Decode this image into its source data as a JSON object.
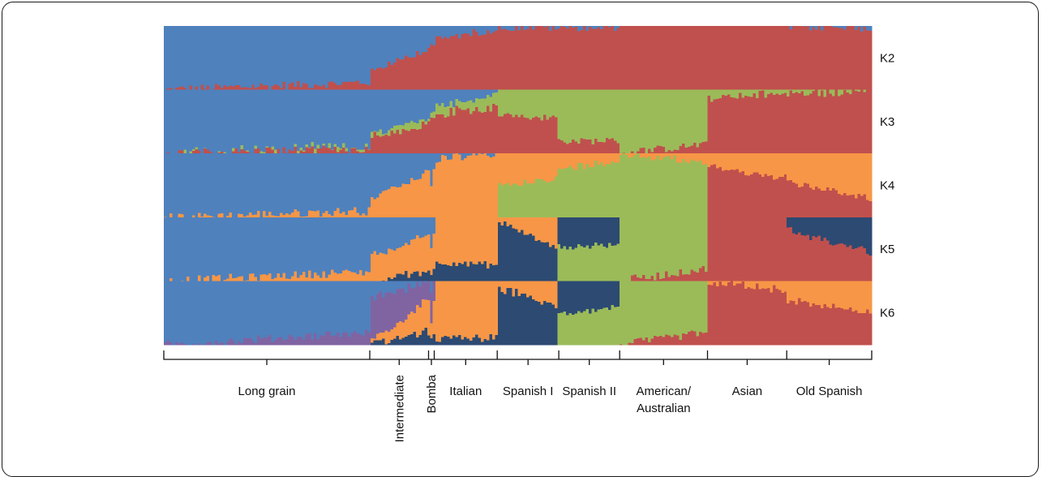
{
  "chart_data": {
    "type": "bar",
    "subtype": "stacked-100-percent admixture plot (STRUCTURE)",
    "rows": [
      "K2",
      "K3",
      "K4",
      "K5",
      "K6"
    ],
    "component_colors": [
      "#4f81bd",
      "#c0504d",
      "#9bbb59",
      "#f79646",
      "#2c4a72",
      "#8064a2"
    ],
    "component_color_names": [
      "blue",
      "red",
      "green",
      "orange",
      "navy",
      "purple"
    ],
    "groups": [
      {
        "label": "Long grain",
        "orientation": "horizontal",
        "proportion": 0.291
      },
      {
        "label": "Intermediate",
        "orientation": "vertical",
        "proportion": 0.083
      },
      {
        "label": "Bomba",
        "orientation": "vertical",
        "proportion": 0.008
      },
      {
        "label": "Italian",
        "orientation": "horizontal",
        "proportion": 0.089
      },
      {
        "label": "Spanish I",
        "orientation": "horizontal",
        "proportion": 0.087
      },
      {
        "label": "Spanish II",
        "orientation": "horizontal",
        "proportion": 0.086
      },
      {
        "label": "American/ Australian",
        "label_lines": [
          "American/",
          "Australian"
        ],
        "orientation": "horizontal",
        "proportion": 0.124
      },
      {
        "label": "Asian",
        "orientation": "horizontal",
        "proportion": 0.112
      },
      {
        "label": "Old Spanish",
        "orientation": "horizontal",
        "proportion": 0.12
      }
    ],
    "profiles": {
      "K2": [
        {
          "group": "Long grain",
          "start": {
            "blue": 1.0,
            "red": 0.0
          },
          "end": {
            "blue": 0.88,
            "red": 0.12
          }
        },
        {
          "group": "Intermediate",
          "start": {
            "blue": 0.72,
            "red": 0.28
          },
          "end": {
            "blue": 0.35,
            "red": 0.65
          }
        },
        {
          "group": "Bomba",
          "start": {
            "blue": 0.3,
            "red": 0.7
          },
          "end": {
            "blue": 0.28,
            "red": 0.72
          }
        },
        {
          "group": "Italian",
          "start": {
            "blue": 0.22,
            "red": 0.78
          },
          "end": {
            "blue": 0.05,
            "red": 0.95
          }
        },
        {
          "group": "Spanish I",
          "start": {
            "blue": 0.02,
            "red": 0.98
          },
          "end": {
            "blue": 0.02,
            "red": 0.98
          }
        },
        {
          "group": "Spanish II",
          "start": {
            "blue": 0.02,
            "red": 0.98
          },
          "end": {
            "blue": 0.02,
            "red": 0.98
          }
        },
        {
          "group": "American/ Australian",
          "start": {
            "blue": 0.0,
            "red": 1.0
          },
          "end": {
            "blue": 0.0,
            "red": 1.0
          }
        },
        {
          "group": "Asian",
          "start": {
            "blue": 0.0,
            "red": 1.0
          },
          "end": {
            "blue": 0.0,
            "red": 1.0
          }
        },
        {
          "group": "Old Spanish",
          "start": {
            "blue": 0.01,
            "red": 0.99
          },
          "end": {
            "blue": 0.03,
            "red": 0.97
          }
        }
      ],
      "K3": [
        {
          "group": "Long grain",
          "start": {
            "blue": 1.0,
            "red": 0.0,
            "green": 0.0
          },
          "end": {
            "blue": 0.9,
            "red": 0.08,
            "green": 0.02
          }
        },
        {
          "group": "Intermediate",
          "start": {
            "blue": 0.7,
            "red": 0.25,
            "green": 0.05
          },
          "end": {
            "blue": 0.45,
            "red": 0.45,
            "green": 0.1
          }
        },
        {
          "group": "Bomba",
          "start": {
            "blue": 0.4,
            "red": 0.5,
            "green": 0.1
          },
          "end": {
            "blue": 0.35,
            "red": 0.55,
            "green": 0.1
          }
        },
        {
          "group": "Italian",
          "start": {
            "blue": 0.25,
            "red": 0.6,
            "green": 0.15
          },
          "end": {
            "blue": 0.1,
            "red": 0.7,
            "green": 0.2
          }
        },
        {
          "group": "Spanish I",
          "start": {
            "blue": 0.0,
            "red": 0.6,
            "green": 0.4
          },
          "end": {
            "blue": 0.0,
            "red": 0.55,
            "green": 0.45
          }
        },
        {
          "group": "Spanish II",
          "start": {
            "blue": 0.0,
            "red": 0.2,
            "green": 0.8
          },
          "end": {
            "blue": 0.0,
            "red": 0.2,
            "green": 0.8
          }
        },
        {
          "group": "American/ Australian",
          "start": {
            "blue": 0.0,
            "red": 0.0,
            "green": 1.0
          },
          "end": {
            "blue": 0.0,
            "red": 0.15,
            "green": 0.85
          }
        },
        {
          "group": "Asian",
          "start": {
            "blue": 0.0,
            "red": 0.85,
            "green": 0.15
          },
          "end": {
            "blue": 0.0,
            "red": 0.95,
            "green": 0.05
          }
        },
        {
          "group": "Old Spanish",
          "start": {
            "blue": 0.0,
            "red": 0.95,
            "green": 0.05
          },
          "end": {
            "blue": 0.0,
            "red": 0.95,
            "green": 0.05
          }
        }
      ],
      "K4": [
        {
          "group": "Long grain",
          "start": {
            "blue": 1.0,
            "orange": 0.0
          },
          "end": {
            "blue": 0.88,
            "orange": 0.1
          }
        },
        {
          "group": "Intermediate",
          "start": {
            "blue": 0.7,
            "orange": 0.3
          },
          "end": {
            "blue": 0.3,
            "orange": 0.7
          }
        },
        {
          "group": "Italian",
          "start": {
            "blue": 0.1,
            "orange": 0.9
          },
          "end": {
            "blue": 0.0,
            "orange": 1.0
          }
        },
        {
          "group": "Spanish I",
          "start": {
            "orange": 0.5,
            "green": 0.5
          },
          "end": {
            "orange": 0.4,
            "green": 0.6
          }
        },
        {
          "group": "Spanish II",
          "start": {
            "orange": 0.25,
            "green": 0.75
          },
          "end": {
            "orange": 0.1,
            "green": 0.9
          }
        },
        {
          "group": "American/ Australian",
          "start": {
            "green": 1.0
          },
          "end": {
            "green": 0.85,
            "orange": 0.15
          }
        },
        {
          "group": "Asian",
          "start": {
            "red": 0.8,
            "orange": 0.2
          },
          "end": {
            "red": 0.6,
            "orange": 0.4
          }
        },
        {
          "group": "Old Spanish",
          "start": {
            "red": 0.55,
            "orange": 0.45
          },
          "end": {
            "red": 0.3,
            "orange": 0.7
          }
        }
      ],
      "K5": [
        {
          "group": "Long grain",
          "start": {
            "blue": 1.0
          },
          "end": {
            "blue": 0.85,
            "orange": 0.15
          }
        },
        {
          "group": "Intermediate",
          "start": {
            "blue": 0.6,
            "orange": 0.4
          },
          "end": {
            "blue": 0.3,
            "orange": 0.55,
            "navy": 0.15
          }
        },
        {
          "group": "Italian",
          "start": {
            "orange": 0.7,
            "navy": 0.3
          },
          "end": {
            "orange": 0.75,
            "navy": 0.25
          }
        },
        {
          "group": "Spanish I",
          "start": {
            "navy": 0.95,
            "orange": 0.05
          },
          "end": {
            "navy": 0.5,
            "orange": 0.5
          }
        },
        {
          "group": "Spanish II",
          "start": {
            "navy": 0.45,
            "green": 0.55
          },
          "end": {
            "navy": 0.45,
            "green": 0.55
          }
        },
        {
          "group": "American/ Australian",
          "start": {
            "green": 1.0
          },
          "end": {
            "green": 0.8,
            "red": 0.2
          }
        },
        {
          "group": "Asian",
          "start": {
            "red": 1.0
          },
          "end": {
            "red": 1.0
          }
        },
        {
          "group": "Old Spanish",
          "start": {
            "red": 0.8,
            "navy": 0.2
          },
          "end": {
            "red": 0.45,
            "navy": 0.55
          }
        }
      ],
      "K6": [
        {
          "group": "Long grain",
          "start": {
            "blue": 1.0
          },
          "end": {
            "blue": 0.8,
            "purple": 0.2
          }
        },
        {
          "group": "Intermediate",
          "start": {
            "purple": 0.7,
            "blue": 0.3
          },
          "end": {
            "orange": 0.5,
            "purple": 0.3,
            "navy": 0.2
          }
        },
        {
          "group": "Italian",
          "start": {
            "orange": 0.9,
            "navy": 0.1
          },
          "end": {
            "orange": 0.9,
            "navy": 0.1
          }
        },
        {
          "group": "Spanish I",
          "start": {
            "navy": 0.9,
            "orange": 0.1
          },
          "end": {
            "navy": 0.6,
            "orange": 0.4
          }
        },
        {
          "group": "Spanish II",
          "start": {
            "navy": 0.5,
            "green": 0.5
          },
          "end": {
            "navy": 0.4,
            "green": 0.6
          }
        },
        {
          "group": "American/ Australian",
          "start": {
            "green": 1.0
          },
          "end": {
            "green": 0.8,
            "red": 0.2
          }
        },
        {
          "group": "Asian",
          "start": {
            "red": 1.0
          },
          "end": {
            "red": 0.85,
            "orange": 0.15
          }
        },
        {
          "group": "Old Spanish",
          "start": {
            "red": 0.7,
            "orange": 0.3
          },
          "end": {
            "red": 0.5,
            "orange": 0.5
          }
        }
      ]
    }
  }
}
